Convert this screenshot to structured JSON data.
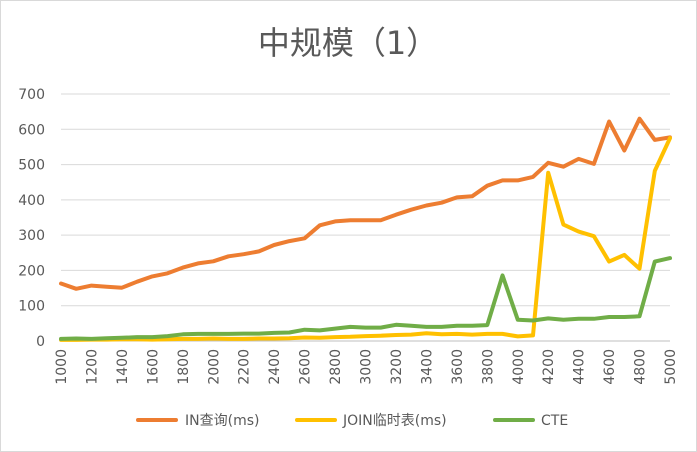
{
  "colors": {
    "in": "#ED7D31",
    "join": "#FFC000",
    "cte": "#70AD47",
    "grid": "#D9D9D9",
    "axis": "#BFBFBF",
    "text": "#595959"
  },
  "chart_data": {
    "type": "line",
    "title": "中规模（1）",
    "xlabel": "",
    "ylabel": "",
    "ylim": [
      0,
      700
    ],
    "yticks": [
      0,
      100,
      200,
      300,
      400,
      500,
      600,
      700
    ],
    "x_tick_labels": [
      "1000",
      "1200",
      "1400",
      "1600",
      "1800",
      "2000",
      "2200",
      "2400",
      "2600",
      "2800",
      "3000",
      "3200",
      "3400",
      "3600",
      "3800",
      "4000",
      "4200",
      "4400",
      "4600",
      "4800",
      "5000"
    ],
    "grid": true,
    "legend_position": "bottom",
    "x": [
      1000,
      1100,
      1200,
      1300,
      1400,
      1500,
      1600,
      1700,
      1800,
      1900,
      2000,
      2100,
      2200,
      2300,
      2400,
      2500,
      2600,
      2700,
      2800,
      2900,
      3000,
      3100,
      3200,
      3300,
      3400,
      3500,
      3600,
      3700,
      3800,
      3900,
      4000,
      4100,
      4200,
      4300,
      4400,
      4500,
      4600,
      4700,
      4800,
      4900,
      5000
    ],
    "series": [
      {
        "key": "in",
        "name": "IN查询(ms)",
        "values": [
          163,
          148,
          157,
          154,
          151,
          168,
          183,
          192,
          208,
          220,
          226,
          240,
          246,
          254,
          272,
          283,
          291,
          328,
          339,
          342,
          342,
          342,
          358,
          372,
          384,
          392,
          407,
          410,
          440,
          455,
          455,
          465,
          505,
          494,
          516,
          502,
          622,
          540,
          630,
          570,
          577
        ]
      },
      {
        "key": "join",
        "name": "JOIN临时表(ms)",
        "values": [
          3,
          3,
          4,
          4,
          5,
          5,
          4,
          5,
          6,
          6,
          7,
          6,
          6,
          7,
          7,
          8,
          10,
          9,
          11,
          12,
          14,
          15,
          17,
          18,
          22,
          19,
          20,
          18,
          20,
          20,
          13,
          16,
          477,
          330,
          310,
          297,
          225,
          244,
          205,
          482,
          575
        ]
      },
      {
        "key": "cte",
        "name": "CTE",
        "values": [
          6,
          7,
          6,
          8,
          9,
          11,
          11,
          14,
          19,
          20,
          20,
          20,
          21,
          21,
          23,
          24,
          32,
          30,
          35,
          40,
          38,
          38,
          46,
          43,
          40,
          40,
          43,
          43,
          45,
          186,
          60,
          58,
          64,
          60,
          63,
          63,
          68,
          68,
          70,
          225,
          235
        ]
      }
    ]
  }
}
